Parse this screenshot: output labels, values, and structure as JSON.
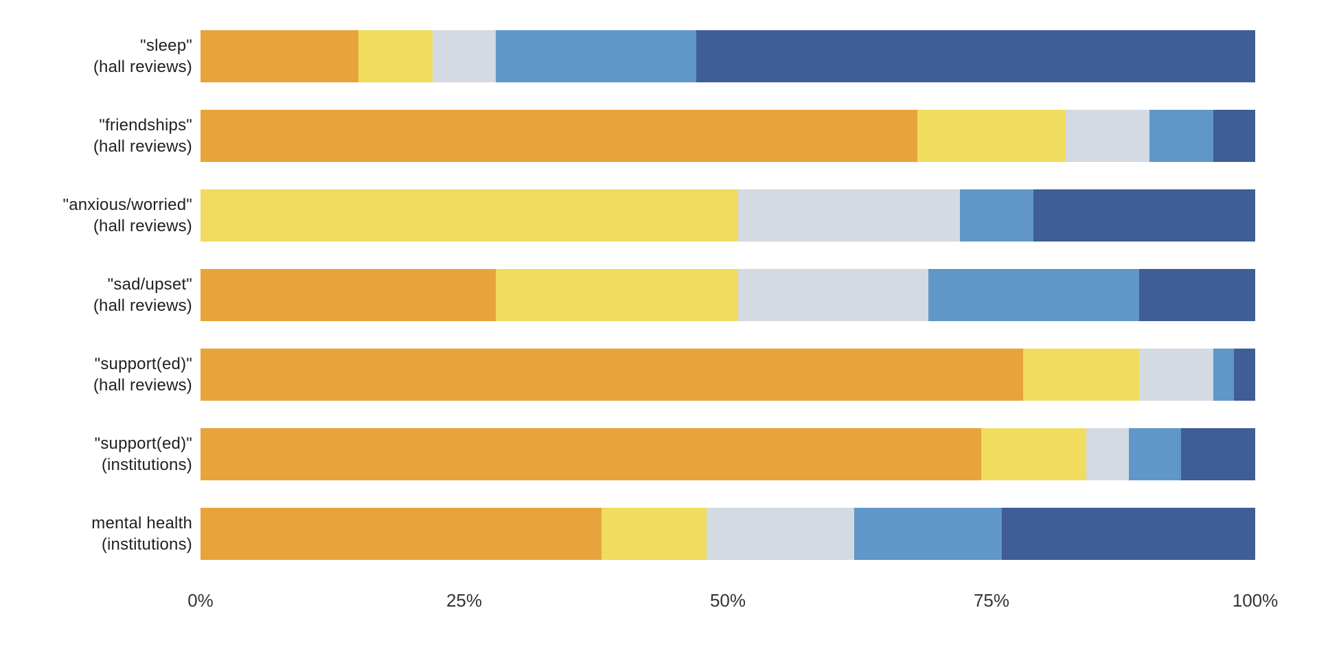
{
  "chart_data": {
    "type": "bar",
    "orientation": "horizontal",
    "stacked": true,
    "title": "",
    "xlabel": "",
    "ylabel": "",
    "xlim": [
      0,
      100
    ],
    "grid": false,
    "legend": "none",
    "categories": [
      {
        "line1": "\"sleep\"",
        "line2": "(hall reviews)"
      },
      {
        "line1": "\"friendships\"",
        "line2": "(hall reviews)"
      },
      {
        "line1": "\"anxious/worried\"",
        "line2": "(hall reviews)"
      },
      {
        "line1": "\"sad/upset\"",
        "line2": "(hall reviews)"
      },
      {
        "line1": "\"support(ed)\"",
        "line2": "(hall reviews)"
      },
      {
        "line1": "\"support(ed)\"",
        "line2": "(institutions)"
      },
      {
        "line1": "mental health",
        "line2": "(institutions)"
      }
    ],
    "series": [
      {
        "name": "orange",
        "color": "#E8A33D",
        "values": [
          15,
          68,
          0,
          28,
          78,
          74,
          38
        ]
      },
      {
        "name": "yellow",
        "color": "#F0DC5E",
        "values": [
          7,
          14,
          51,
          23,
          11,
          10,
          10
        ]
      },
      {
        "name": "light-gray",
        "color": "#D4DAE1",
        "values": [
          6,
          8,
          21,
          18,
          7,
          4,
          14
        ]
      },
      {
        "name": "medium-blue",
        "color": "#6097C8",
        "values": [
          19,
          6,
          7,
          20,
          2,
          5,
          14
        ]
      },
      {
        "name": "dark-blue",
        "color": "#3F5D96",
        "values": [
          53,
          4,
          21,
          11,
          2,
          7,
          24
        ]
      }
    ],
    "x_ticks": [
      {
        "label": "0%",
        "pos": 0
      },
      {
        "label": "25%",
        "pos": 25
      },
      {
        "label": "50%",
        "pos": 50
      },
      {
        "label": "75%",
        "pos": 75
      },
      {
        "label": "100%",
        "pos": 100
      }
    ]
  }
}
